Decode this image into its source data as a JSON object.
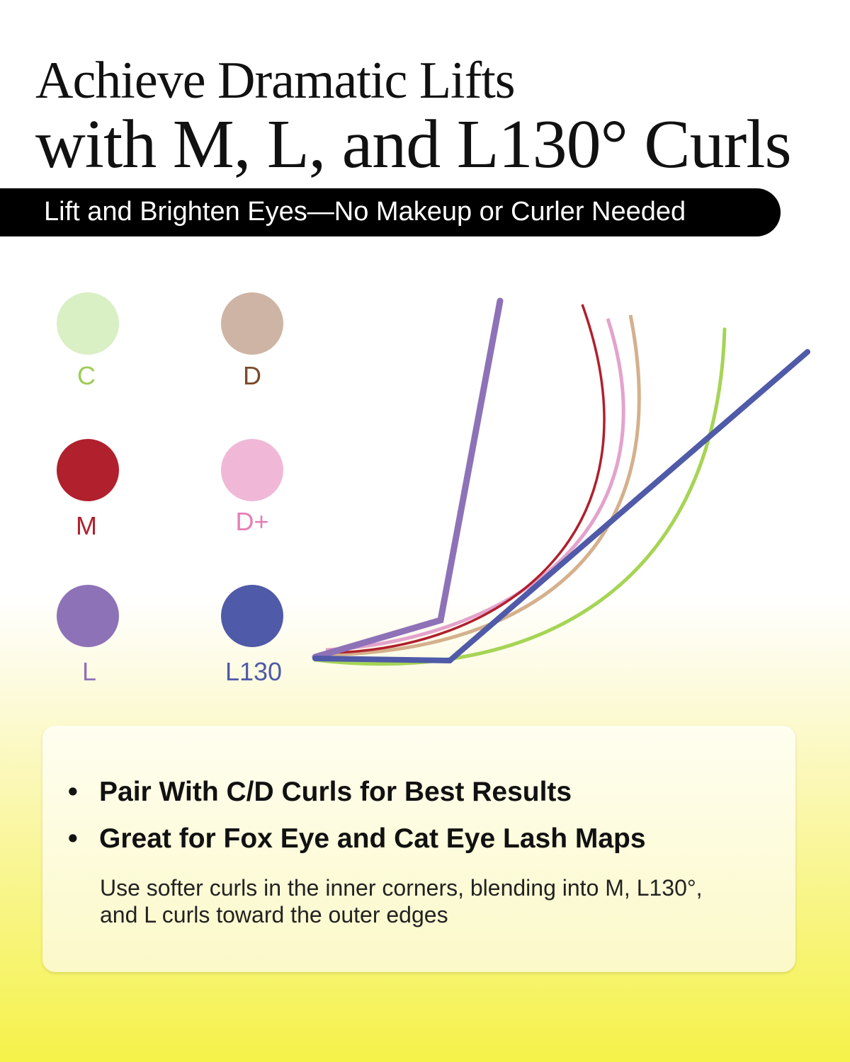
{
  "header": {
    "title_line1": "Achieve Dramatic Lifts",
    "title_line2": "with M, L, and L130° Curls",
    "banner": "Lift and Brighten Eyes—No Makeup or Curler Needed"
  },
  "legend": [
    {
      "label": "C",
      "swatch": "#d9efc4",
      "text_color": "#9ccc55",
      "line": "#a6d455"
    },
    {
      "label": "D",
      "swatch": "#ceb4a4",
      "text_color": "#7a4a2a",
      "line": "#d4b08c"
    },
    {
      "label": "M",
      "swatch": "#b0202d",
      "text_color": "#b0202d",
      "line": "#b0202d"
    },
    {
      "label": "D+",
      "swatch": "#f0b8d6",
      "text_color": "#e37fb6",
      "line": "#e3a3cc"
    },
    {
      "label": "L",
      "swatch": "#8e72b8",
      "text_color": "#8e72b8",
      "line": "#8e72b8"
    },
    {
      "label": "L130",
      "swatch": "#4f5aa8",
      "text_color": "#4f5aa8",
      "line": "#4f5aa8"
    }
  ],
  "card": {
    "bullets": [
      "Pair With C/D Curls for Best Results",
      "Great for Fox Eye and Cat Eye Lash Maps"
    ],
    "note": "Use softer curls in the inner corners, blending into M, L130°, and L curls toward the outer edges"
  }
}
